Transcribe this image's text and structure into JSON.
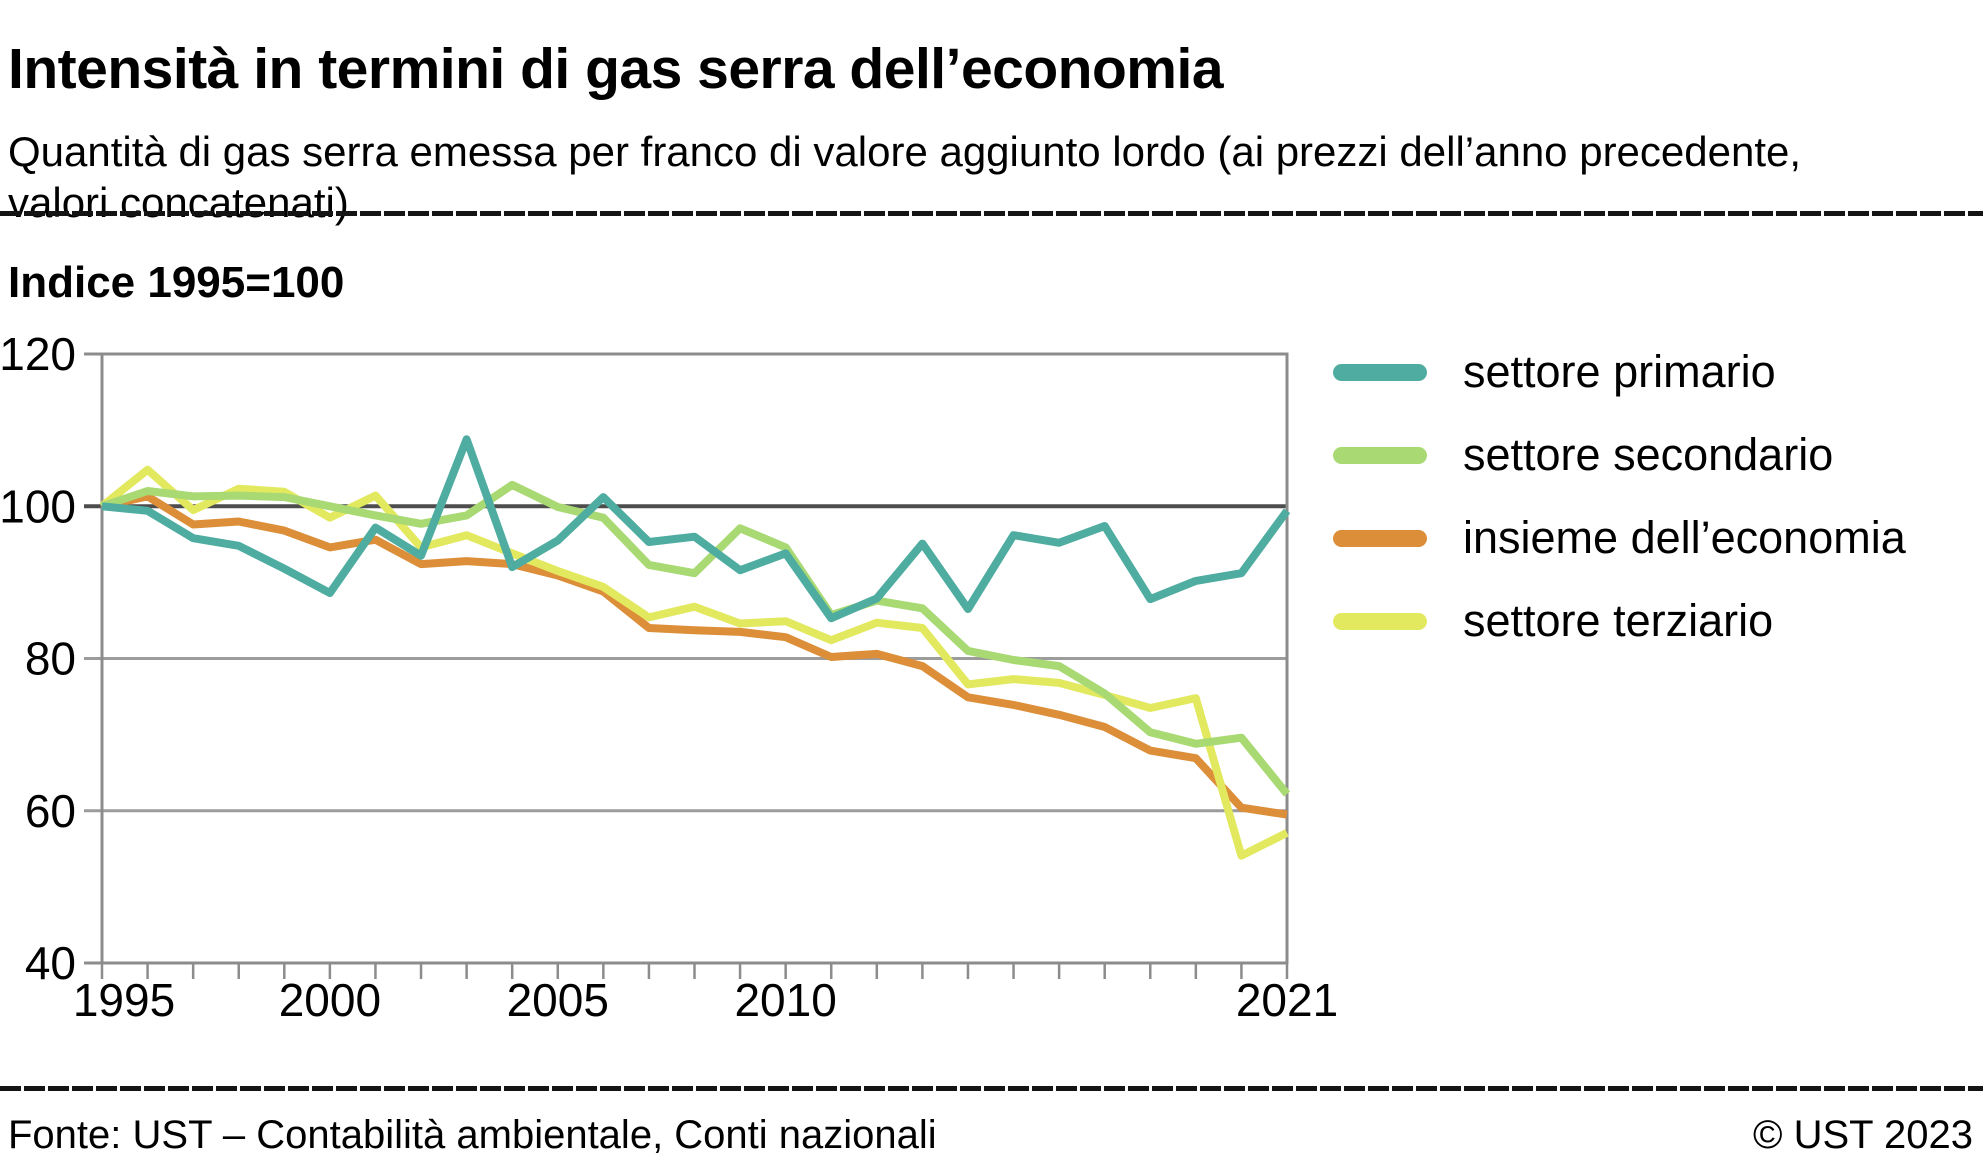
{
  "header": {
    "title": "Intensità in termini di gas serra dell’economia",
    "subtitle": "Quantità di gas serra emessa per franco di valore aggiunto lordo (ai prezzi dell’anno precedente, valori concatenati)"
  },
  "chart_data": {
    "type": "line",
    "ylabel": "Indice 1995=100",
    "x": [
      1995,
      1996,
      1997,
      1998,
      1999,
      2000,
      2001,
      2002,
      2003,
      2004,
      2005,
      2006,
      2007,
      2008,
      2009,
      2010,
      2011,
      2012,
      2013,
      2014,
      2015,
      2016,
      2017,
      2018,
      2019,
      2020,
      2021
    ],
    "xticks": [
      1995,
      2000,
      2005,
      2010,
      2021
    ],
    "ylim": [
      40,
      120
    ],
    "yticks": [
      40,
      60,
      80,
      100,
      120
    ],
    "reference_line": 100,
    "grid": "horizontal",
    "legend_position": "right",
    "series": [
      {
        "name": "settore primario",
        "color": "#4EACA0",
        "values": [
          100,
          99.4,
          95.8,
          94.8,
          91.8,
          88.6,
          97.2,
          93.5,
          108.8,
          92.0,
          95.5,
          101.2,
          95.3,
          96.0,
          91.6,
          93.8,
          85.3,
          87.9,
          95.1,
          86.5,
          96.2,
          95.2,
          97.4,
          87.8,
          90.2,
          91.2,
          99.4
        ]
      },
      {
        "name": "settore secondario",
        "color": "#A8D973",
        "values": [
          100,
          102.0,
          101.3,
          101.4,
          101.2,
          100.0,
          98.8,
          97.7,
          98.8,
          102.8,
          99.9,
          98.5,
          92.3,
          91.2,
          97.1,
          94.6,
          85.7,
          87.6,
          86.6,
          81.0,
          79.8,
          79.0,
          75.4,
          70.3,
          68.8,
          69.6,
          62.2
        ]
      },
      {
        "name": "insieme dell’economia",
        "color": "#DC8E38",
        "values": [
          100,
          101.3,
          97.6,
          98.0,
          96.8,
          94.6,
          95.6,
          92.4,
          92.8,
          92.4,
          90.9,
          88.8,
          84.0,
          83.7,
          83.5,
          82.8,
          80.2,
          80.6,
          79.0,
          74.9,
          73.9,
          72.6,
          71.0,
          67.9,
          66.9,
          60.4,
          59.5
        ]
      },
      {
        "name": "settore terziario",
        "color": "#E3E95F",
        "values": [
          100,
          104.8,
          99.5,
          102.3,
          101.9,
          98.5,
          101.4,
          94.6,
          96.2,
          93.8,
          91.5,
          89.4,
          85.4,
          86.8,
          84.6,
          84.9,
          82.4,
          84.7,
          84.0,
          76.6,
          77.3,
          76.8,
          75.2,
          73.5,
          74.8,
          54.1,
          57.1
        ]
      }
    ],
    "draw_order": [
      2,
      3,
      1,
      0
    ]
  },
  "footer": {
    "source": "Fonte: UST – Contabilità ambientale, Conti nazionali",
    "copyright": "© UST 2023"
  }
}
